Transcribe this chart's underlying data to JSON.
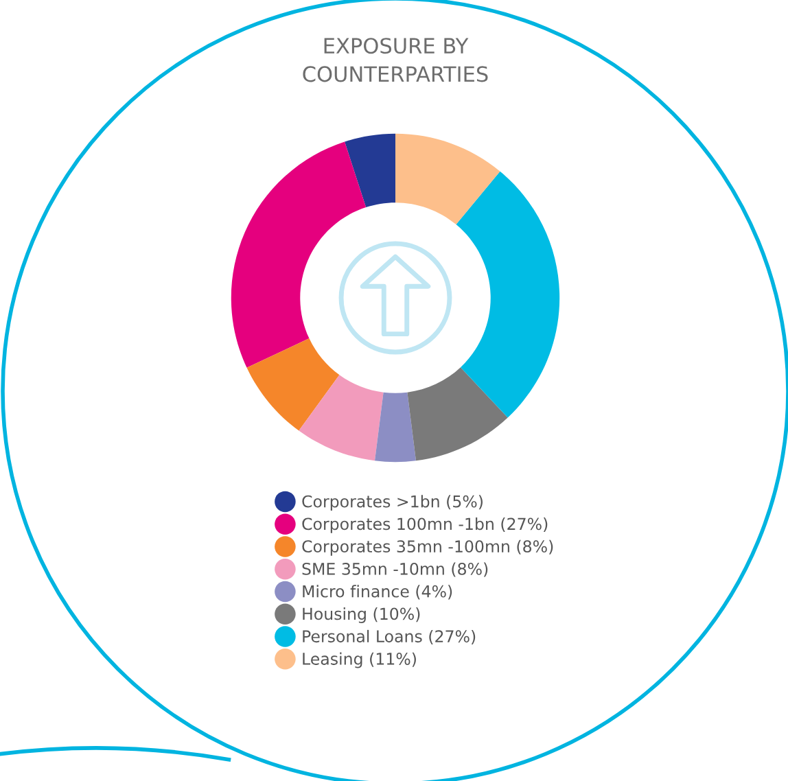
{
  "chart_data": {
    "type": "donut",
    "title": "EXPOSURE BY\nCOUNTERPARTIES",
    "categories": [
      "Corporates >1bn (5%)",
      "Corporates 100mn -1bn (27%)",
      "Corporates 35mn -100mn (8%)",
      "SME 35mn -10mn (8%)",
      "Micro finance (4%)",
      "Housing (10%)",
      "Personal Loans (27%)",
      "Leasing (11%)"
    ],
    "values": [
      5,
      27,
      8,
      8,
      4,
      10,
      27,
      11
    ],
    "colors": [
      "#233a94",
      "#e5007e",
      "#f5862a",
      "#f29bbc",
      "#8c8ec4",
      "#7a7a7a",
      "#00bce4",
      "#fdbf8b"
    ],
    "legend": "bottom"
  }
}
